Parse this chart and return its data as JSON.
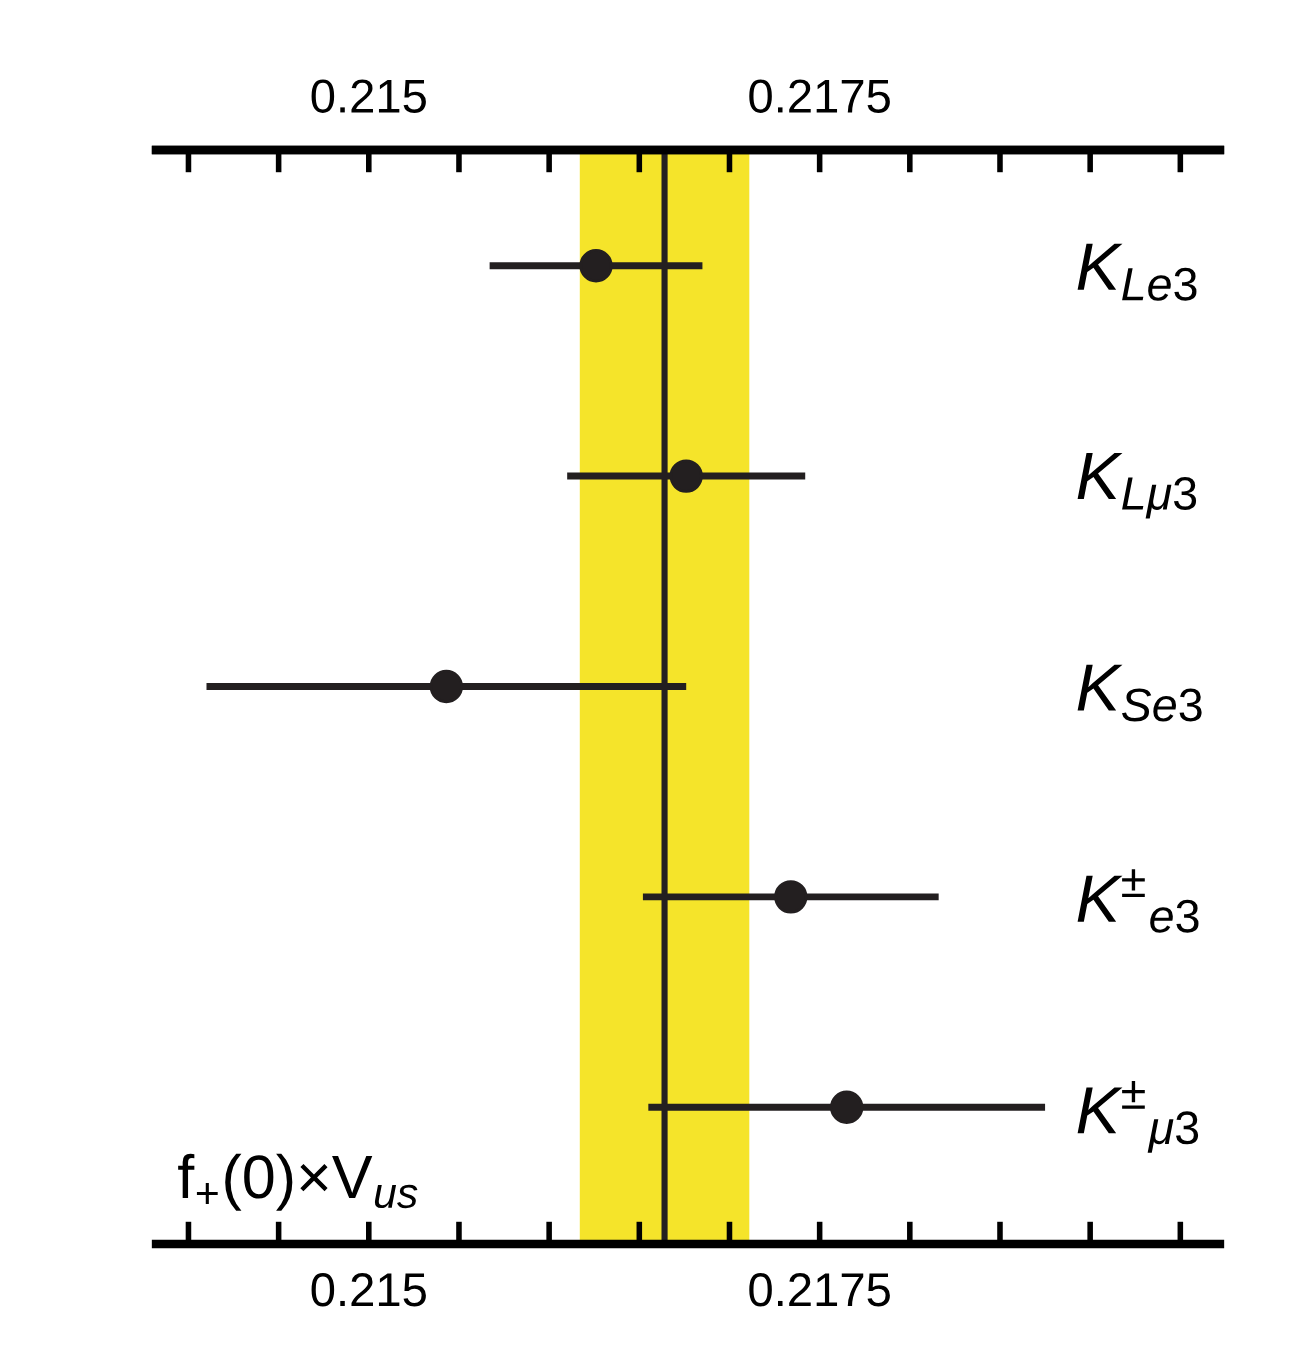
{
  "chart_data": {
    "type": "scatter",
    "orientation": "horizontal",
    "categories": [
      "K$_{Le3}$",
      "K$_{Lμ3}$",
      "K$_{Se3}$",
      "K$^{±}$$_{e3}$",
      "K$^{±}$$_{μ3}$"
    ],
    "values": [
      0.21626,
      0.21676,
      0.21543,
      0.21734,
      0.21765
    ],
    "errors": [
      0.00059,
      0.00066,
      0.00133,
      0.00082,
      0.0011
    ],
    "color": "#231f20",
    "marker": "circle",
    "xlim": [
      0.21382,
      0.21972
    ],
    "xticks": [
      {
        "value": 0.214,
        "label": null
      },
      {
        "value": 0.2145,
        "label": null
      },
      0.215,
      {
        "value": 0.2155,
        "label": null
      },
      {
        "value": 0.216,
        "label": null
      },
      {
        "value": 0.2165,
        "label": null
      },
      {
        "value": 0.217,
        "label": null
      },
      0.2175,
      {
        "value": 0.218,
        "label": null
      },
      {
        "value": 0.2185,
        "label": null
      },
      {
        "value": 0.219,
        "label": null
      },
      {
        "value": 0.2195,
        "label": null
      }
    ],
    "x2lim": [
      0.21382,
      0.21972
    ],
    "x2ticks": [
      {
        "value": 0.214,
        "label": null
      },
      {
        "value": 0.2145,
        "label": null
      },
      0.215,
      {
        "value": 0.2155,
        "label": null
      },
      {
        "value": 0.216,
        "label": null
      },
      {
        "value": 0.2165,
        "label": null
      },
      {
        "value": 0.217,
        "label": null
      },
      0.2175,
      {
        "value": 0.218,
        "label": null
      },
      {
        "value": 0.2185,
        "label": null
      },
      {
        "value": 0.219,
        "label": null
      },
      {
        "value": 0.2195,
        "label": null
      }
    ],
    "ref_lines": [
      {
        "axis": "x",
        "value": 0.21664,
        "color": "#231f20"
      }
    ],
    "bands": [
      {
        "axis": "x",
        "from": 0.21617,
        "to": 0.21711,
        "color": "#f5e42a"
      }
    ],
    "annotations": [
      "f$_{+}$(0)×V$_{us}$"
    ],
    "grid": false,
    "legend": false
  }
}
